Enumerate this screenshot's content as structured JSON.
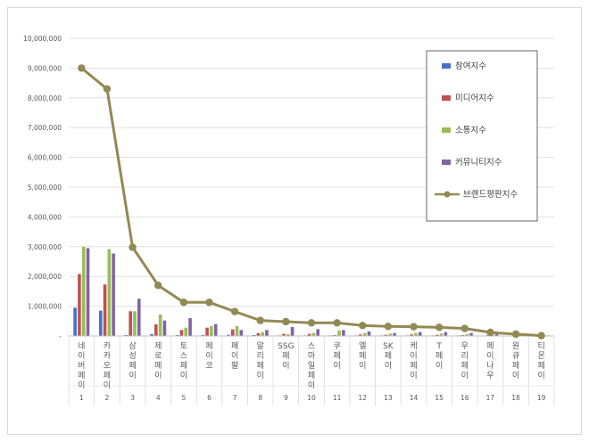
{
  "chart_data": {
    "type": "bar",
    "ylim": [
      0,
      10000000
    ],
    "yticks": [
      "0",
      "1,000,000",
      "2,000,000",
      "3,000,000",
      "4,000,000",
      "5,000,000",
      "6,000,000",
      "7,000,000",
      "8,000,000",
      "9,000,000",
      "10,000,000"
    ],
    "yticks_visible": [
      "-",
      "1,000,000",
      "2,000,000",
      "3,000,000",
      "4,000,000",
      "5,000,000",
      "6,000,000",
      "7,000,000",
      "8,000,000",
      "9,000,000",
      "10,000,000"
    ],
    "grid": true,
    "legend_position": "top-right",
    "ranks": [
      "1",
      "2",
      "3",
      "4",
      "5",
      "6",
      "7",
      "8",
      "9",
      "10",
      "11",
      "12",
      "13",
      "14",
      "15",
      "16",
      "17",
      "18",
      "19"
    ],
    "categories": [
      "네이버페이",
      "카카오페이",
      "삼성페이",
      "제로페이",
      "토스페이",
      "페이코",
      "페이팔",
      "알리페이",
      "SSG페이",
      "스마일페이",
      "쿠페이",
      "엘페이",
      "SK페이",
      "케이페이",
      "T페이",
      "우리페이",
      "페이나우",
      "원큐페이",
      "티몬페이"
    ],
    "series": [
      {
        "name": "참여지수",
        "kind": "bar",
        "color": "#4472c4",
        "values": [
          950000,
          850000,
          30000,
          60000,
          30000,
          30000,
          40000,
          30000,
          20000,
          20000,
          20000,
          20000,
          20000,
          20000,
          20000,
          20000,
          10000,
          10000,
          5000
        ]
      },
      {
        "name": "미디어지수",
        "kind": "bar",
        "color": "#c0504d",
        "values": [
          2080000,
          1730000,
          830000,
          390000,
          200000,
          280000,
          220000,
          90000,
          70000,
          70000,
          30000,
          50000,
          40000,
          50000,
          40000,
          30000,
          30000,
          20000,
          10000
        ]
      },
      {
        "name": "소통지수",
        "kind": "bar",
        "color": "#9bbb59",
        "values": [
          3000000,
          2920000,
          830000,
          720000,
          280000,
          330000,
          330000,
          130000,
          60000,
          100000,
          180000,
          100000,
          80000,
          100000,
          80000,
          60000,
          40000,
          20000,
          10000
        ]
      },
      {
        "name": "커뮤니티지수",
        "kind": "bar",
        "color": "#8064a2",
        "values": [
          2950000,
          2770000,
          1250000,
          520000,
          600000,
          400000,
          200000,
          200000,
          300000,
          230000,
          200000,
          150000,
          100000,
          130000,
          130000,
          100000,
          60000,
          40000,
          20000
        ]
      },
      {
        "name": "브랜드평판지수",
        "kind": "line",
        "color": "#938953",
        "values": [
          9000000,
          8300000,
          2980000,
          1700000,
          1130000,
          1130000,
          820000,
          520000,
          480000,
          440000,
          440000,
          350000,
          320000,
          310000,
          290000,
          250000,
          120000,
          60000,
          10000
        ]
      }
    ]
  }
}
